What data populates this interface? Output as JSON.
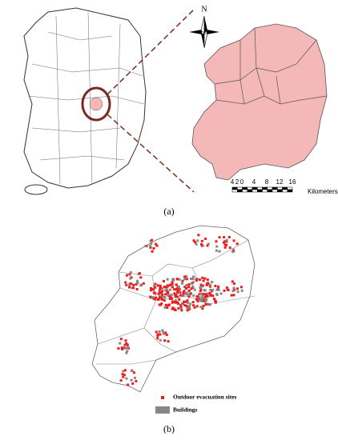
{
  "panel_a": {
    "north": "N",
    "scale_labels": [
      "4",
      "2",
      "0",
      "4",
      "8",
      "12",
      "16"
    ],
    "scale_unit": "Kilometers",
    "caption": "(a)"
  },
  "panel_b": {
    "legend": [
      "Outdoor evacuation sites",
      "Buildings"
    ],
    "caption": "(b)"
  }
}
